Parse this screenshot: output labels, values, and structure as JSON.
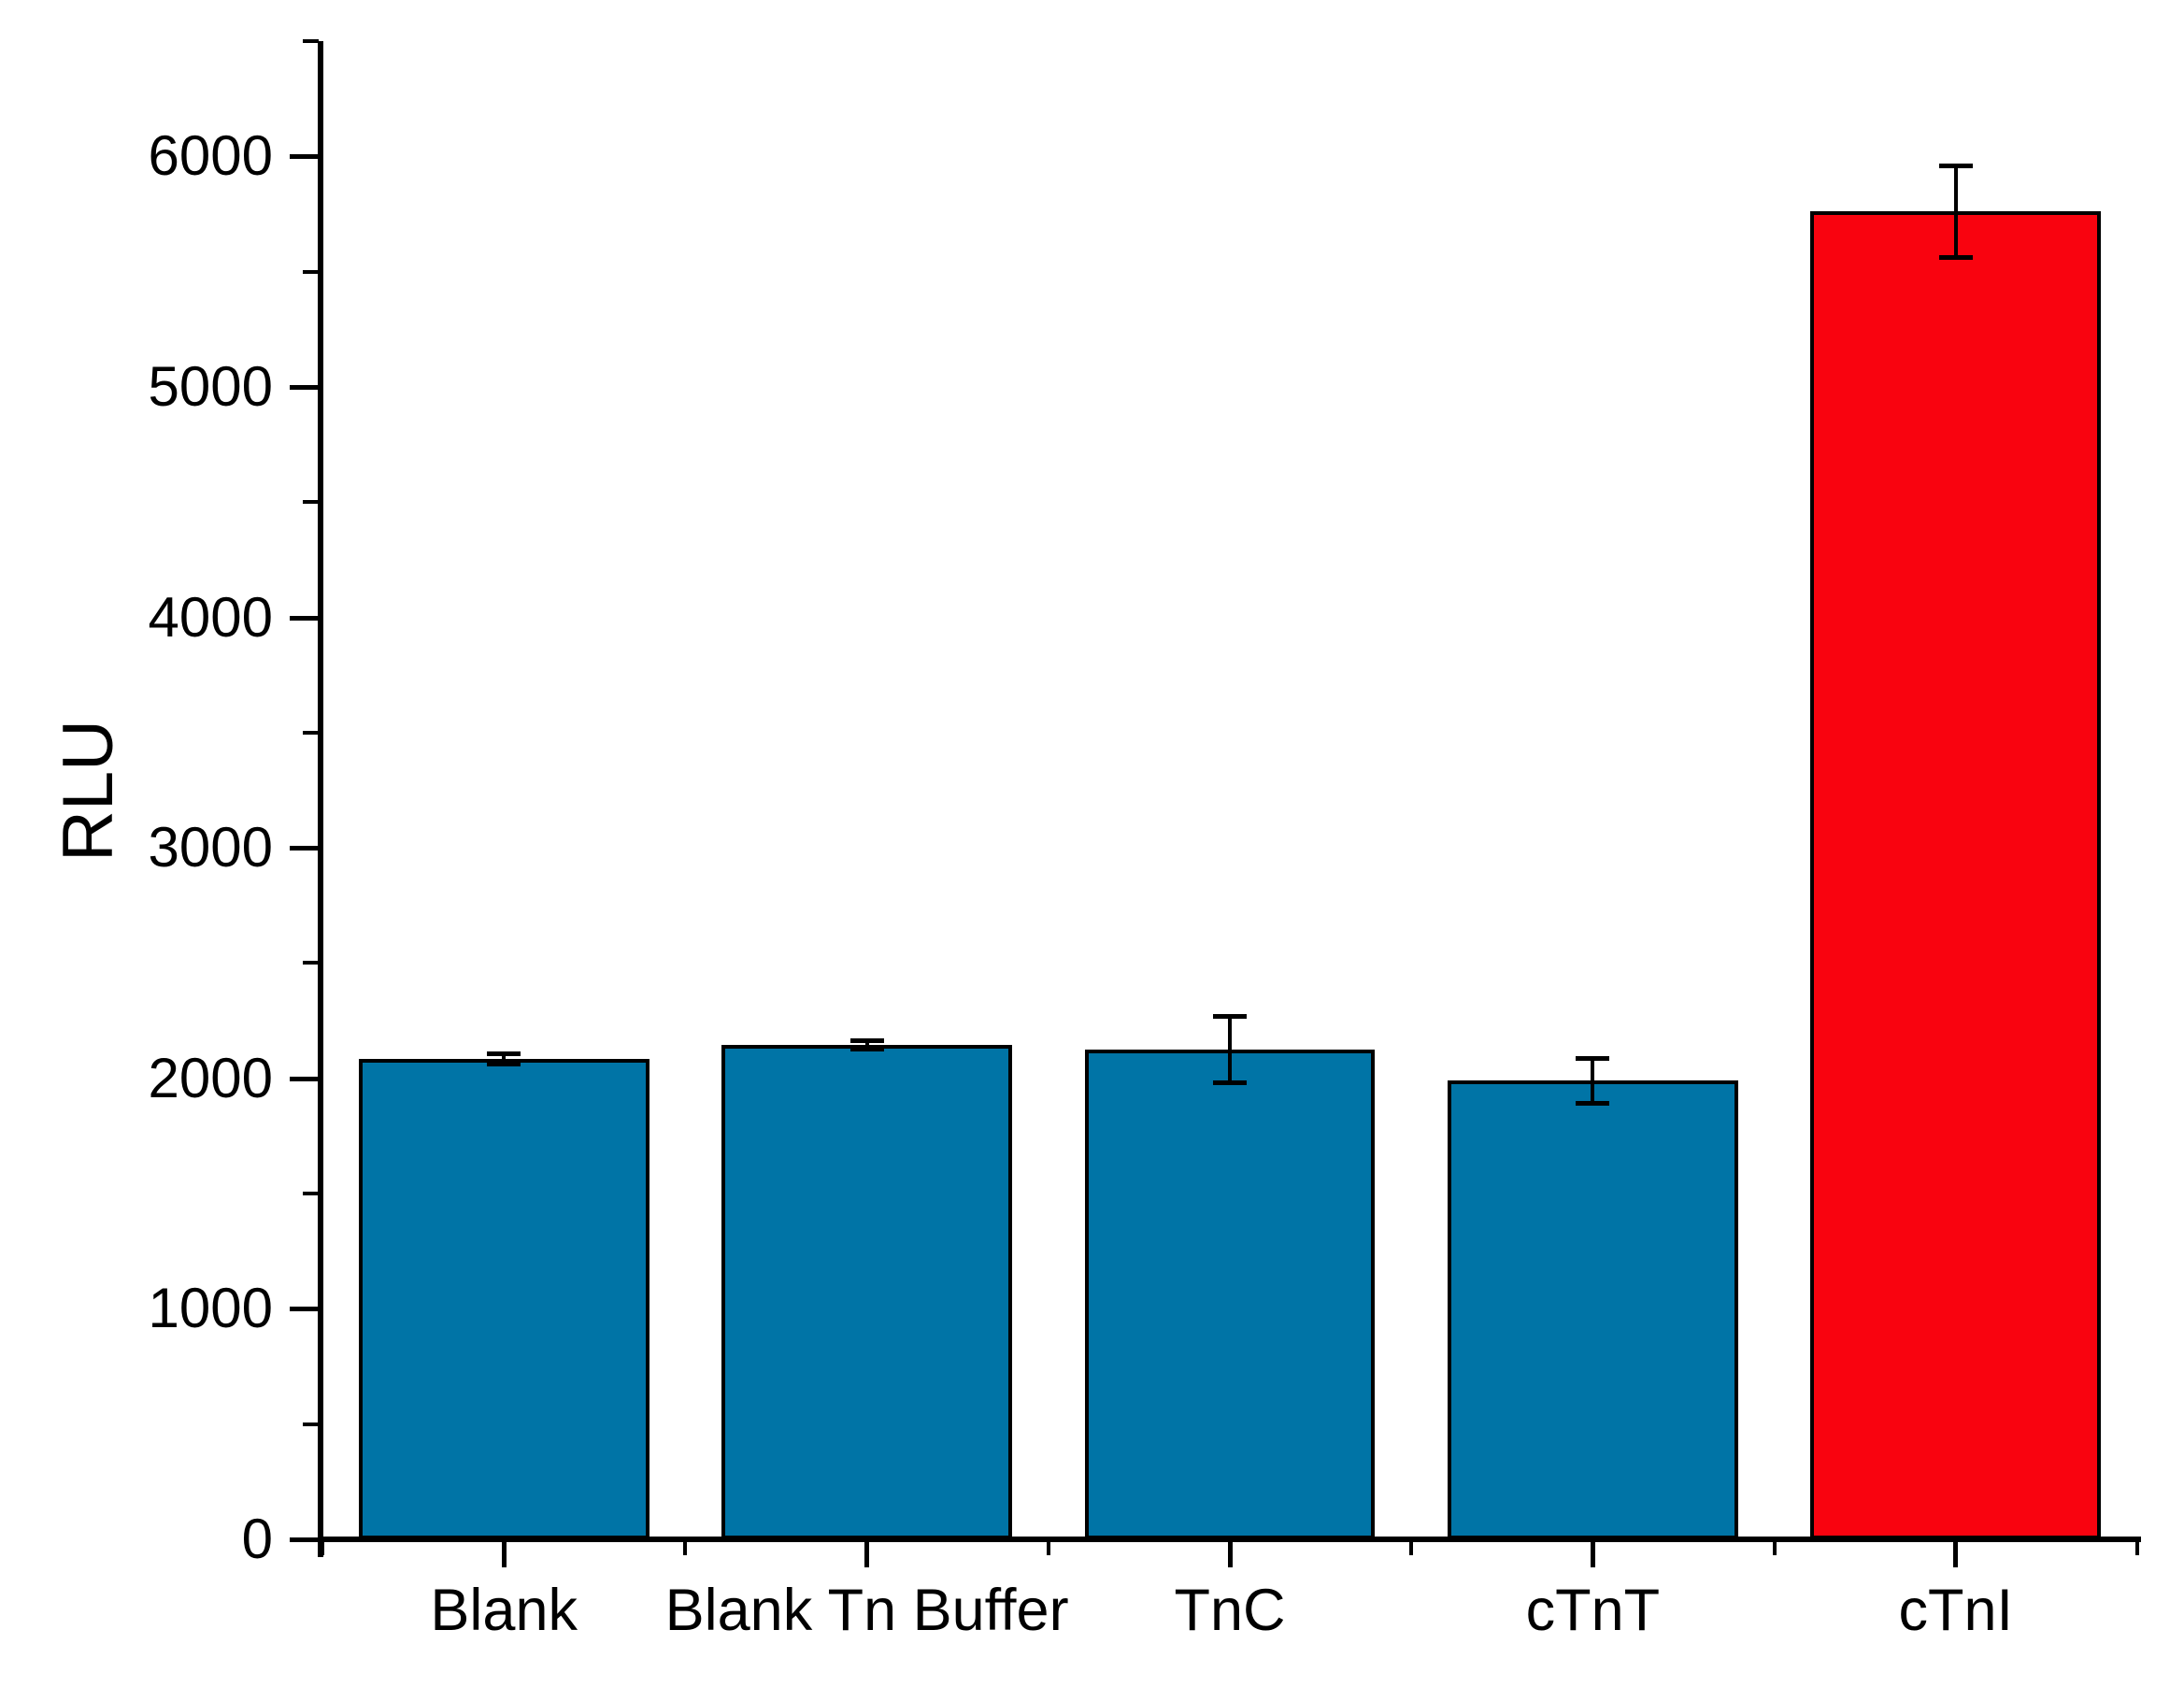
{
  "figure": {
    "background": "#ffffff"
  },
  "chart_data": {
    "type": "bar",
    "title": "",
    "xlabel": "",
    "ylabel": "RLU",
    "categories": [
      "Blank",
      "Blank Tn Buffer",
      "TnC",
      "cTnT",
      "cTnI"
    ],
    "values": [
      2085,
      2145,
      2125,
      1990,
      5760
    ],
    "errors": [
      25,
      20,
      145,
      100,
      200
    ],
    "bar_colors": [
      "#0074A6",
      "#0074A6",
      "#0074A6",
      "#0074A6",
      "#F9030F"
    ],
    "bar_edge_color": "#000000",
    "error_color": "#000000",
    "ylim": [
      0,
      6500
    ],
    "ytick_step": 1000,
    "yminor_step": 500,
    "ytick_labels": [
      "0",
      "1000",
      "2000",
      "3000",
      "4000",
      "5000",
      "6000"
    ],
    "grid": false,
    "legend": false
  }
}
